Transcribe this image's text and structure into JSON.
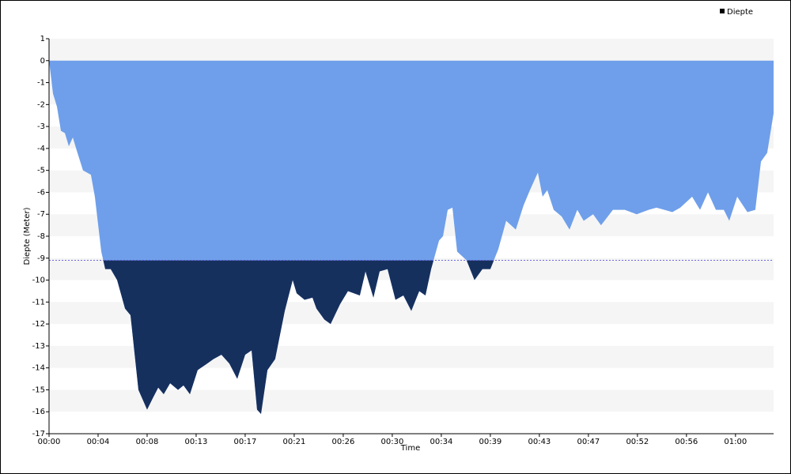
{
  "chart_data": {
    "type": "area",
    "x_label": "Time",
    "y_label": "Diepte (Meter)",
    "legend": "top-right",
    "legend_marker_color": "#000000",
    "grid_bands": true,
    "band_color": "#f5f5f5",
    "threshold": {
      "value": -9.1,
      "color": "#16305e",
      "line_color": "#6a6ae0"
    },
    "x": [
      0,
      21,
      42,
      63,
      84,
      105,
      126,
      147,
      180,
      222,
      243,
      277,
      298,
      327,
      361,
      403,
      432,
      474,
      520,
      549,
      579,
      608,
      642,
      684,
      713,
      747,
      788,
      839,
      872,
      914,
      956,
      998,
      1040,
      1074,
      1103,
      1124,
      1158,
      1199,
      1250,
      1292,
      1313,
      1355,
      1397,
      1418,
      1460,
      1493,
      1543,
      1585,
      1648,
      1678,
      1720,
      1753,
      1795,
      1837,
      1879,
      1921,
      1963,
      1996,
      2026,
      2068,
      2089,
      2114,
      2139,
      2164,
      2214,
      2256,
      2298,
      2340,
      2382,
      2424,
      2475,
      2516,
      2550,
      2592,
      2617,
      2642,
      2676,
      2718,
      2760,
      2801,
      2835,
      2885,
      2927,
      2990,
      3053,
      3116,
      3179,
      3221,
      3263,
      3305,
      3347,
      3410,
      3452,
      3494,
      3536,
      3578,
      3607,
      3649,
      3703,
      3745,
      3775,
      3808,
      3842
    ],
    "series": [
      {
        "name": "Diepte",
        "color": "#6f9fea",
        "values": [
          0,
          -1.5,
          -2.1,
          -3.2,
          -3.3,
          -3.9,
          -3.5,
          -4.1,
          -5.0,
          -5.2,
          -6.2,
          -8.7,
          -9.5,
          -9.5,
          -10.0,
          -11.3,
          -11.6,
          -15.0,
          -15.9,
          -15.4,
          -14.9,
          -15.2,
          -14.7,
          -15.0,
          -14.8,
          -15.2,
          -14.1,
          -13.8,
          -13.6,
          -13.4,
          -13.8,
          -14.5,
          -13.4,
          -13.2,
          -15.9,
          -16.1,
          -14.1,
          -13.6,
          -11.4,
          -10.0,
          -10.6,
          -10.9,
          -10.8,
          -11.3,
          -11.8,
          -12.0,
          -11.1,
          -10.5,
          -10.7,
          -9.6,
          -10.8,
          -9.6,
          -9.5,
          -10.9,
          -10.7,
          -11.4,
          -10.5,
          -10.7,
          -9.5,
          -8.2,
          -8.0,
          -6.8,
          -6.7,
          -8.7,
          -9.1,
          -10.0,
          -9.5,
          -9.5,
          -8.6,
          -7.3,
          -7.7,
          -6.6,
          -5.9,
          -5.1,
          -6.2,
          -5.9,
          -6.8,
          -7.1,
          -7.7,
          -6.8,
          -7.3,
          -7.0,
          -7.5,
          -6.8,
          -6.8,
          -7.0,
          -6.8,
          -6.7,
          -6.8,
          -6.9,
          -6.7,
          -6.2,
          -6.8,
          -6.0,
          -6.8,
          -6.8,
          -7.3,
          -6.2,
          -6.9,
          -6.8,
          -4.6,
          -4.2,
          -2.4
        ]
      }
    ],
    "xlim": [
      0,
      3842
    ],
    "ylim": [
      -17,
      1
    ],
    "xticks": [
      {
        "value": 0,
        "label": "00:00"
      },
      {
        "value": 260,
        "label": "00:04"
      },
      {
        "value": 520,
        "label": "00:08"
      },
      {
        "value": 780,
        "label": "00:13"
      },
      {
        "value": 1040,
        "label": "00:17"
      },
      {
        "value": 1300,
        "label": "00:21"
      },
      {
        "value": 1560,
        "label": "00:26"
      },
      {
        "value": 1820,
        "label": "00:30"
      },
      {
        "value": 2080,
        "label": "00:34"
      },
      {
        "value": 2340,
        "label": "00:39"
      },
      {
        "value": 2600,
        "label": "00:43"
      },
      {
        "value": 2860,
        "label": "00:47"
      },
      {
        "value": 3120,
        "label": "00:52"
      },
      {
        "value": 3380,
        "label": "00:56"
      },
      {
        "value": 3640,
        "label": "01:00"
      }
    ],
    "yticks": [
      1,
      0,
      -1,
      -2,
      -3,
      -4,
      -5,
      -6,
      -7,
      -8,
      -9,
      -10,
      -11,
      -12,
      -13,
      -14,
      -15,
      -16,
      -17
    ]
  }
}
